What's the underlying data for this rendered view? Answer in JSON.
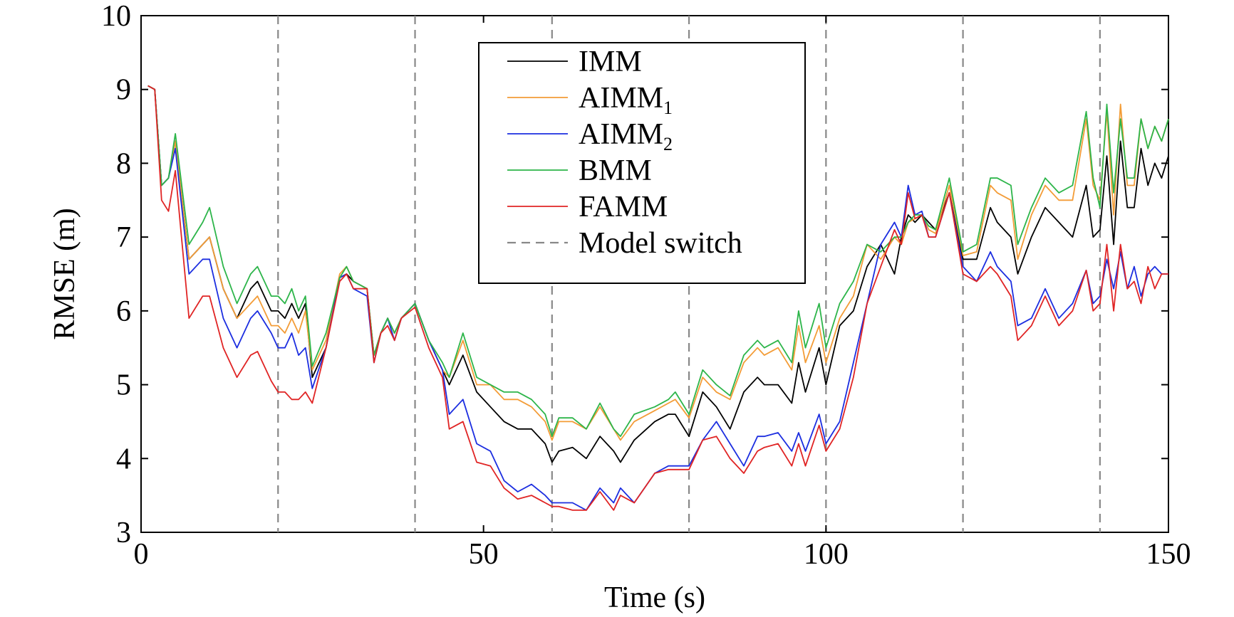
{
  "chart_data": {
    "type": "line",
    "title": "",
    "xlabel": "Time (s)",
    "ylabel": "RMSE (m)",
    "xlim": [
      0,
      150
    ],
    "ylim": [
      3,
      10
    ],
    "xticks": [
      0,
      50,
      100,
      150
    ],
    "yticks": [
      3,
      4,
      5,
      6,
      7,
      8,
      9,
      10
    ],
    "grid": false,
    "legend_position": "top-center",
    "model_switch_times": [
      20,
      40,
      60,
      80,
      100,
      120,
      140
    ],
    "model_switch_label": "Model switch",
    "model_switch_color": "#888888",
    "x": [
      1,
      2,
      3,
      4,
      5,
      7,
      9,
      10,
      12,
      14,
      16,
      17,
      19,
      20,
      21,
      22,
      23,
      24,
      25,
      27,
      29,
      30,
      31,
      33,
      34,
      35,
      36,
      37,
      38,
      40,
      42,
      44,
      45,
      47,
      49,
      51,
      53,
      55,
      57,
      59,
      60,
      61,
      63,
      65,
      67,
      69,
      70,
      72,
      75,
      77,
      78,
      80,
      82,
      84,
      86,
      88,
      90,
      91,
      93,
      95,
      96,
      97,
      99,
      100,
      102,
      104,
      106,
      108,
      110,
      111,
      112,
      113,
      114,
      115,
      116,
      118,
      120,
      122,
      124,
      125,
      127,
      128,
      130,
      132,
      134,
      136,
      138,
      139,
      140,
      141,
      142,
      143,
      144,
      145,
      146,
      147,
      148,
      149,
      150
    ],
    "series": [
      {
        "name": "IMM",
        "color": "#000000",
        "values": [
          9.05,
          9.0,
          7.7,
          7.8,
          8.3,
          6.7,
          6.9,
          7.0,
          6.3,
          5.9,
          6.3,
          6.4,
          6.0,
          6.0,
          5.9,
          6.1,
          5.9,
          6.1,
          5.1,
          5.5,
          6.45,
          6.5,
          6.4,
          6.3,
          5.4,
          5.7,
          5.9,
          5.7,
          5.9,
          6.1,
          5.6,
          5.2,
          5.0,
          5.4,
          4.9,
          4.7,
          4.5,
          4.4,
          4.4,
          4.2,
          3.95,
          4.1,
          4.15,
          4.0,
          4.3,
          4.1,
          3.95,
          4.25,
          4.5,
          4.6,
          4.6,
          4.3,
          4.9,
          4.7,
          4.4,
          4.9,
          5.1,
          5.0,
          5.0,
          4.75,
          5.3,
          4.9,
          5.5,
          5.0,
          5.8,
          6.0,
          6.6,
          6.9,
          6.5,
          7.0,
          7.3,
          7.2,
          7.3,
          7.2,
          7.1,
          7.6,
          6.7,
          6.7,
          7.4,
          7.2,
          7.0,
          6.5,
          7.0,
          7.4,
          7.2,
          7.0,
          7.7,
          7.0,
          7.1,
          8.1,
          6.9,
          8.3,
          7.4,
          7.4,
          8.2,
          7.7,
          8.0,
          7.8,
          8.1
        ]
      },
      {
        "name": "AIMM1",
        "label_base": "AIMM",
        "label_sub": "1",
        "color": "#f39c37",
        "values": [
          9.05,
          9.0,
          7.7,
          7.8,
          8.3,
          6.7,
          6.9,
          7.0,
          6.3,
          5.9,
          6.1,
          6.2,
          5.8,
          5.8,
          5.7,
          5.9,
          5.7,
          6.0,
          5.2,
          5.6,
          6.5,
          6.6,
          6.4,
          6.3,
          5.4,
          5.7,
          5.9,
          5.7,
          5.9,
          6.1,
          5.6,
          5.2,
          5.1,
          5.6,
          5.0,
          5.0,
          4.8,
          4.8,
          4.7,
          4.5,
          4.25,
          4.5,
          4.5,
          4.4,
          4.7,
          4.4,
          4.25,
          4.5,
          4.65,
          4.75,
          4.8,
          4.55,
          5.1,
          4.9,
          4.8,
          5.3,
          5.5,
          5.4,
          5.5,
          5.2,
          5.8,
          5.3,
          5.8,
          5.3,
          5.9,
          6.2,
          6.9,
          6.7,
          7.0,
          6.9,
          7.2,
          7.25,
          7.3,
          7.1,
          7.05,
          7.7,
          6.75,
          6.8,
          7.7,
          7.6,
          7.5,
          6.7,
          7.3,
          7.7,
          7.5,
          7.5,
          8.6,
          7.7,
          7.5,
          8.7,
          7.3,
          8.8,
          7.7,
          7.7,
          8.6,
          8.2,
          8.5,
          8.3,
          8.6
        ]
      },
      {
        "name": "AIMM2",
        "label_base": "AIMM",
        "label_sub": "2",
        "color": "#1c2ee0",
        "values": [
          9.05,
          9.0,
          7.7,
          7.8,
          8.2,
          6.5,
          6.7,
          6.7,
          5.9,
          5.5,
          5.9,
          6.0,
          5.7,
          5.5,
          5.5,
          5.7,
          5.4,
          5.5,
          4.95,
          5.5,
          6.45,
          6.5,
          6.3,
          6.2,
          5.3,
          5.7,
          5.9,
          5.6,
          5.9,
          6.1,
          5.6,
          5.2,
          4.6,
          4.8,
          4.2,
          4.1,
          3.7,
          3.55,
          3.65,
          3.5,
          3.4,
          3.4,
          3.4,
          3.3,
          3.6,
          3.4,
          3.6,
          3.4,
          3.8,
          3.9,
          3.9,
          3.9,
          4.25,
          4.5,
          4.2,
          3.9,
          4.3,
          4.3,
          4.35,
          4.1,
          4.35,
          4.1,
          4.6,
          4.2,
          4.5,
          5.3,
          6.1,
          6.9,
          7.2,
          7.0,
          7.7,
          7.3,
          7.35,
          7.0,
          7.0,
          7.6,
          6.6,
          6.4,
          6.8,
          6.6,
          6.4,
          5.8,
          5.9,
          6.3,
          5.9,
          6.1,
          6.55,
          6.1,
          6.2,
          6.7,
          6.3,
          6.8,
          6.3,
          6.6,
          6.2,
          6.5,
          6.6,
          6.5,
          6.5
        ]
      },
      {
        "name": "BMM",
        "color": "#2db54a",
        "values": [
          9.05,
          9.0,
          7.7,
          7.8,
          8.4,
          6.9,
          7.2,
          7.4,
          6.6,
          6.1,
          6.5,
          6.6,
          6.2,
          6.2,
          6.1,
          6.3,
          6.0,
          6.2,
          5.25,
          5.7,
          6.45,
          6.6,
          6.4,
          6.3,
          5.4,
          5.7,
          5.9,
          5.7,
          5.9,
          6.1,
          5.6,
          5.3,
          5.1,
          5.7,
          5.1,
          5.0,
          4.9,
          4.9,
          4.8,
          4.6,
          4.3,
          4.55,
          4.55,
          4.4,
          4.75,
          4.4,
          4.3,
          4.6,
          4.7,
          4.8,
          4.9,
          4.6,
          5.2,
          5.0,
          4.85,
          5.4,
          5.6,
          5.5,
          5.6,
          5.3,
          6.0,
          5.5,
          6.1,
          5.5,
          6.1,
          6.4,
          6.9,
          6.8,
          7.0,
          7.0,
          7.2,
          7.3,
          7.3,
          7.15,
          7.1,
          7.8,
          6.8,
          6.9,
          7.8,
          7.8,
          7.7,
          6.9,
          7.4,
          7.8,
          7.6,
          7.7,
          8.7,
          7.8,
          7.4,
          8.8,
          7.6,
          8.6,
          7.8,
          7.8,
          8.6,
          8.2,
          8.5,
          8.3,
          8.6
        ]
      },
      {
        "name": "FAMM",
        "color": "#e02424",
        "values": [
          9.05,
          9.0,
          7.5,
          7.35,
          7.9,
          5.9,
          6.2,
          6.2,
          5.5,
          5.1,
          5.4,
          5.45,
          5.05,
          4.9,
          4.9,
          4.8,
          4.8,
          4.9,
          4.75,
          5.5,
          6.4,
          6.5,
          6.3,
          6.3,
          5.3,
          5.7,
          5.8,
          5.6,
          5.9,
          6.05,
          5.5,
          5.1,
          4.4,
          4.5,
          3.95,
          3.9,
          3.6,
          3.45,
          3.5,
          3.4,
          3.35,
          3.35,
          3.3,
          3.3,
          3.55,
          3.3,
          3.5,
          3.4,
          3.8,
          3.85,
          3.85,
          3.85,
          4.25,
          4.3,
          4.0,
          3.8,
          4.1,
          4.15,
          4.2,
          3.9,
          4.2,
          3.9,
          4.45,
          4.1,
          4.4,
          5.1,
          6.1,
          6.6,
          7.1,
          6.9,
          7.6,
          7.25,
          7.3,
          7.0,
          7.0,
          7.6,
          6.5,
          6.4,
          6.6,
          6.5,
          6.2,
          5.6,
          5.8,
          6.2,
          5.8,
          6.0,
          6.55,
          6.0,
          6.1,
          6.9,
          6.0,
          6.9,
          6.3,
          6.4,
          6.1,
          6.6,
          6.3,
          6.5,
          6.5
        ]
      }
    ]
  }
}
